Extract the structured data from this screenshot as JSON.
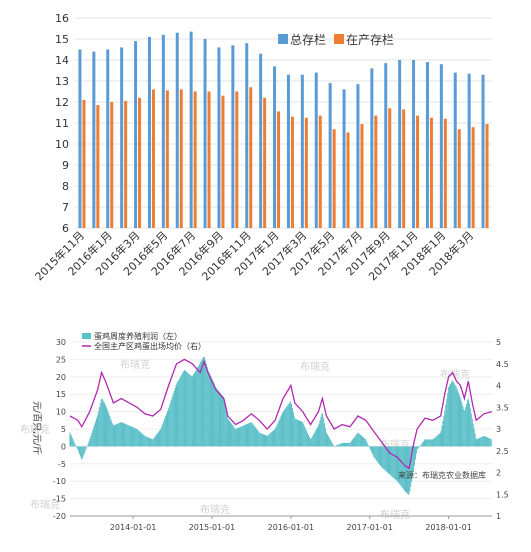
{
  "chart_data": [
    {
      "type": "bar",
      "categories": [
        "2015年11月",
        "2015年12月",
        "2016年1月",
        "2016年2月",
        "2016年3月",
        "2016年4月",
        "2016年5月",
        "2016年6月",
        "2016年7月",
        "2016年8月",
        "2016年9月",
        "2016年10月",
        "2016年11月",
        "2016年12月",
        "2017年1月",
        "2017年2月",
        "2017年3月",
        "2017年4月",
        "2017年5月",
        "2017年6月",
        "2017年7月",
        "2017年8月",
        "2017年9月",
        "2017年10月",
        "2017年11月",
        "2017年12月",
        "2018年1月",
        "2018年2月",
        "2018年3月",
        "2018年4月"
      ],
      "tick_labels": [
        "2015年11月",
        "2016年1月",
        "2016年3月",
        "2016年5月",
        "2016年7月",
        "2016年9月",
        "2016年11月",
        "2017年1月",
        "2017年3月",
        "2017年5月",
        "2017年7月",
        "2017年9月",
        "2017年11月",
        "2018年1月",
        "2018年3月"
      ],
      "series": [
        {
          "name": "总存栏",
          "color": "#5b9bd5",
          "values": [
            14.5,
            14.4,
            14.5,
            14.6,
            14.9,
            15.1,
            15.2,
            15.3,
            15.35,
            15.0,
            14.6,
            14.7,
            14.8,
            14.3,
            13.7,
            13.3,
            13.3,
            13.4,
            12.9,
            12.6,
            12.85,
            13.6,
            13.85,
            14.0,
            14.0,
            13.9,
            13.8,
            13.4,
            13.35,
            13.3
          ]
        },
        {
          "name": "在产存栏",
          "color": "#ed7d31",
          "values": [
            12.1,
            11.85,
            12.0,
            12.05,
            12.2,
            12.6,
            12.55,
            12.6,
            12.5,
            12.5,
            12.3,
            12.5,
            12.7,
            12.2,
            11.55,
            11.3,
            11.25,
            11.35,
            10.7,
            10.55,
            10.95,
            11.35,
            11.7,
            11.65,
            11.35,
            11.25,
            11.2,
            10.7,
            10.8,
            10.95
          ]
        }
      ],
      "ylim": [
        6,
        16
      ],
      "yticks": [
        6,
        7,
        8,
        9,
        10,
        11,
        12,
        13,
        14,
        15,
        16
      ],
      "legend": "top-right"
    },
    {
      "type": "area",
      "ylabel": "元/百只,元/斤",
      "left_axis": {
        "ylim": [
          -20,
          30
        ],
        "ticks": [
          30,
          25,
          20,
          15,
          10,
          5,
          0,
          -5,
          -10,
          -15,
          -20
        ]
      },
      "right_axis": {
        "ylim": [
          1,
          5
        ],
        "ticks": [
          "5",
          "4.5",
          "4",
          "3.5",
          "3",
          "2.5",
          "2",
          "1.5",
          "1"
        ]
      },
      "x_ticks": [
        "2014-01-01",
        "2015-01-01",
        "2016-01-01",
        "2017-01-01",
        "2018-01-01"
      ],
      "x_range": [
        2013.2,
        2018.55
      ],
      "series": [
        {
          "name": "蛋鸡周度养殖利润（左）",
          "color": "#5bbfc8",
          "points": [
            [
              2013.2,
              4
            ],
            [
              2013.3,
              -1
            ],
            [
              2013.35,
              -4
            ],
            [
              2013.45,
              2
            ],
            [
              2013.55,
              9
            ],
            [
              2013.6,
              14
            ],
            [
              2013.65,
              12
            ],
            [
              2013.75,
              6
            ],
            [
              2013.85,
              7
            ],
            [
              2013.95,
              6
            ],
            [
              2014.05,
              5
            ],
            [
              2014.15,
              3
            ],
            [
              2014.25,
              2
            ],
            [
              2014.35,
              5
            ],
            [
              2014.45,
              11
            ],
            [
              2014.55,
              18
            ],
            [
              2014.65,
              22
            ],
            [
              2014.75,
              20
            ],
            [
              2014.85,
              24
            ],
            [
              2014.9,
              26
            ],
            [
              2014.95,
              22
            ],
            [
              2015.05,
              17
            ],
            [
              2015.15,
              14
            ],
            [
              2015.2,
              8
            ],
            [
              2015.3,
              5
            ],
            [
              2015.4,
              6
            ],
            [
              2015.5,
              7
            ],
            [
              2015.6,
              4
            ],
            [
              2015.7,
              3
            ],
            [
              2015.8,
              5
            ],
            [
              2015.9,
              10
            ],
            [
              2016.0,
              13
            ],
            [
              2016.05,
              8
            ],
            [
              2016.15,
              7
            ],
            [
              2016.25,
              2
            ],
            [
              2016.35,
              6
            ],
            [
              2016.4,
              10
            ],
            [
              2016.45,
              4
            ],
            [
              2016.55,
              0
            ],
            [
              2016.65,
              1
            ],
            [
              2016.75,
              1
            ],
            [
              2016.85,
              4
            ],
            [
              2016.95,
              2
            ],
            [
              2017.05,
              -3
            ],
            [
              2017.15,
              -6
            ],
            [
              2017.25,
              -8
            ],
            [
              2017.35,
              -10
            ],
            [
              2017.45,
              -13
            ],
            [
              2017.5,
              -14
            ],
            [
              2017.55,
              -8
            ],
            [
              2017.6,
              -1
            ],
            [
              2017.7,
              2
            ],
            [
              2017.8,
              2
            ],
            [
              2017.9,
              4
            ],
            [
              2017.95,
              10
            ],
            [
              2018.0,
              17
            ],
            [
              2018.05,
              19
            ],
            [
              2018.1,
              17
            ],
            [
              2018.15,
              14
            ],
            [
              2018.2,
              10
            ],
            [
              2018.25,
              14
            ],
            [
              2018.3,
              8
            ],
            [
              2018.35,
              2
            ],
            [
              2018.45,
              3
            ],
            [
              2018.55,
              2
            ]
          ]
        },
        {
          "name": "全国主产区鸡蛋出场均价（右）",
          "color": "#b02ab0",
          "points": [
            [
              2013.2,
              3.3
            ],
            [
              2013.3,
              3.2
            ],
            [
              2013.35,
              3.05
            ],
            [
              2013.45,
              3.4
            ],
            [
              2013.55,
              3.9
            ],
            [
              2013.6,
              4.3
            ],
            [
              2013.65,
              4.1
            ],
            [
              2013.75,
              3.6
            ],
            [
              2013.85,
              3.7
            ],
            [
              2013.95,
              3.6
            ],
            [
              2014.05,
              3.5
            ],
            [
              2014.15,
              3.35
            ],
            [
              2014.25,
              3.3
            ],
            [
              2014.35,
              3.45
            ],
            [
              2014.45,
              4.0
            ],
            [
              2014.55,
              4.5
            ],
            [
              2014.65,
              4.6
            ],
            [
              2014.75,
              4.5
            ],
            [
              2014.85,
              4.3
            ],
            [
              2014.9,
              4.55
            ],
            [
              2014.95,
              4.3
            ],
            [
              2015.05,
              3.9
            ],
            [
              2015.15,
              3.7
            ],
            [
              2015.2,
              3.3
            ],
            [
              2015.3,
              3.1
            ],
            [
              2015.4,
              3.2
            ],
            [
              2015.5,
              3.35
            ],
            [
              2015.6,
              3.2
            ],
            [
              2015.7,
              3.0
            ],
            [
              2015.8,
              3.2
            ],
            [
              2015.9,
              3.7
            ],
            [
              2016.0,
              4.0
            ],
            [
              2016.05,
              3.6
            ],
            [
              2016.15,
              3.4
            ],
            [
              2016.25,
              3.1
            ],
            [
              2016.35,
              3.4
            ],
            [
              2016.4,
              3.7
            ],
            [
              2016.45,
              3.3
            ],
            [
              2016.55,
              3.0
            ],
            [
              2016.65,
              3.1
            ],
            [
              2016.75,
              3.05
            ],
            [
              2016.85,
              3.3
            ],
            [
              2016.95,
              3.2
            ],
            [
              2017.05,
              2.95
            ],
            [
              2017.15,
              2.7
            ],
            [
              2017.25,
              2.45
            ],
            [
              2017.35,
              2.35
            ],
            [
              2017.45,
              2.15
            ],
            [
              2017.5,
              2.1
            ],
            [
              2017.55,
              2.6
            ],
            [
              2017.6,
              3.0
            ],
            [
              2017.7,
              3.25
            ],
            [
              2017.8,
              3.2
            ],
            [
              2017.9,
              3.3
            ],
            [
              2017.95,
              3.8
            ],
            [
              2018.0,
              4.2
            ],
            [
              2018.05,
              4.3
            ],
            [
              2018.1,
              4.1
            ],
            [
              2018.15,
              4.0
            ],
            [
              2018.2,
              3.7
            ],
            [
              2018.25,
              4.1
            ],
            [
              2018.3,
              3.6
            ],
            [
              2018.35,
              3.2
            ],
            [
              2018.45,
              3.35
            ],
            [
              2018.55,
              3.4
            ]
          ]
        }
      ],
      "legend": "top-left",
      "source_note": "来源：布瑞克农业数据库",
      "watermark": "布瑞克"
    }
  ]
}
